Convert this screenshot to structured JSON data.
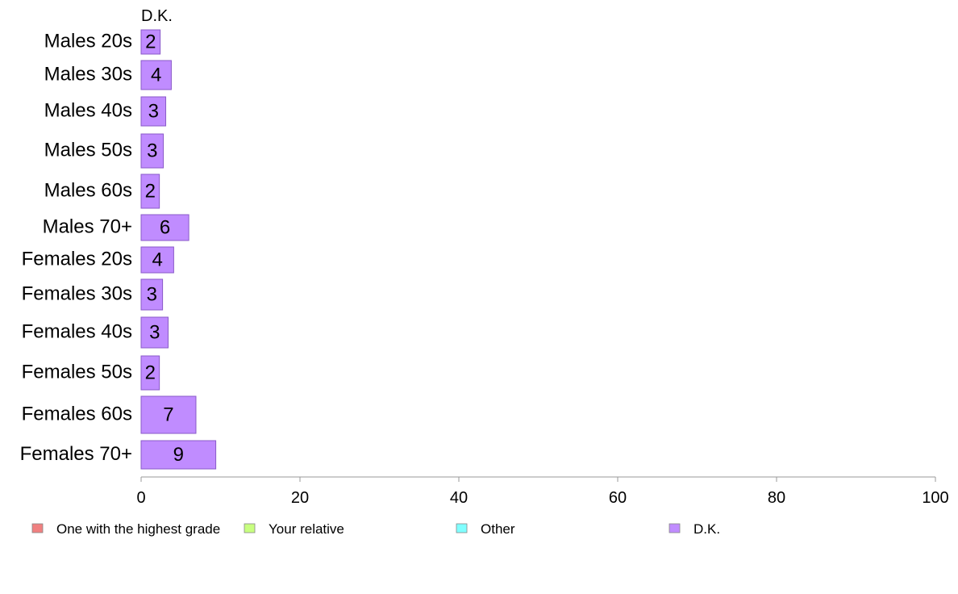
{
  "chart_data": {
    "type": "bar",
    "orientation": "horizontal",
    "categories": [
      "Males 20s",
      "Males 30s",
      "Males 40s",
      "Males 50s",
      "Males 60s",
      "Males 70+",
      "Females 20s",
      "Females 30s",
      "Females 40s",
      "Females 50s",
      "Females 60s",
      "Females 70+"
    ],
    "series": [
      {
        "name": "D.K.",
        "values": [
          2.4,
          3.8,
          3.1,
          2.8,
          2.3,
          6.0,
          4.1,
          2.7,
          3.4,
          2.3,
          6.9,
          9.4
        ],
        "labels": [
          "2",
          "4",
          "3",
          "3",
          "2",
          "6",
          "4",
          "3",
          "3",
          "2",
          "7",
          "9"
        ],
        "color": "#c08cff"
      }
    ],
    "series_title": "D.K.",
    "xlim": [
      0,
      100
    ],
    "xticks": [
      "0",
      "20",
      "40",
      "60",
      "80",
      "100"
    ],
    "legend": {
      "placement": "bottom",
      "entries": [
        {
          "label": "One with the highest grade",
          "color": "#f08080"
        },
        {
          "label": "Your relative",
          "color": "#c8ff80"
        },
        {
          "label": "Other",
          "color": "#80ffff"
        },
        {
          "label": "D.K.",
          "color": "#c08cff"
        }
      ]
    },
    "grid": false
  }
}
